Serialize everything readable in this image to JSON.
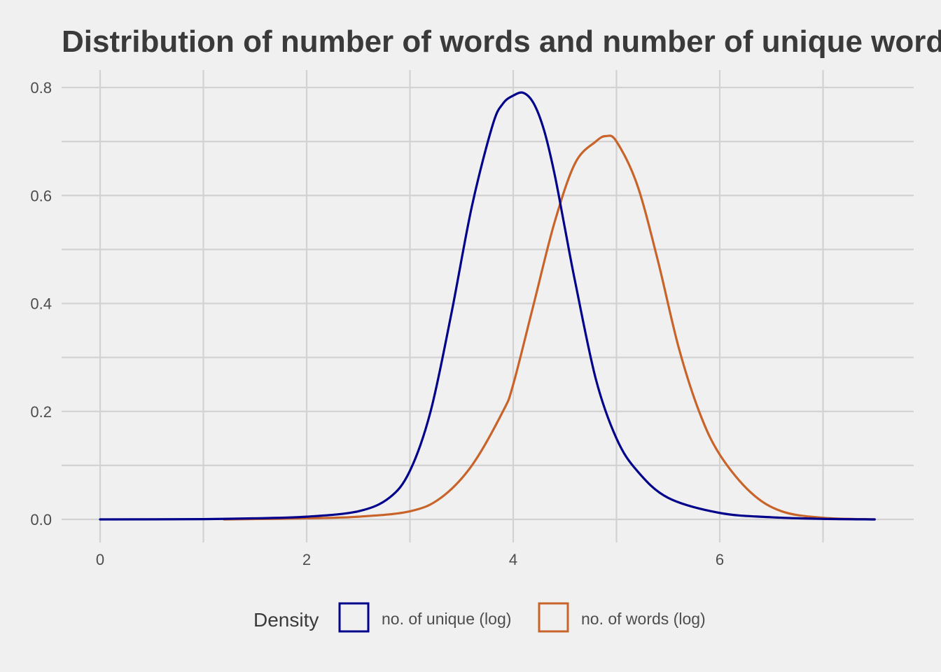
{
  "chart_data": {
    "type": "line",
    "title": "Distribution of number of words and number of unique words",
    "xlabel": "",
    "ylabel": "",
    "xlim": [
      0,
      7.5
    ],
    "ylim": [
      0,
      0.8
    ],
    "x_ticks": [
      0,
      2,
      4,
      6
    ],
    "y_ticks": [
      0.0,
      0.2,
      0.4,
      0.6,
      0.8
    ],
    "x_tick_labels": [
      "0",
      "2",
      "4",
      "6"
    ],
    "y_tick_labels": [
      "0.0",
      "0.2",
      "0.4",
      "0.6",
      "0.8"
    ],
    "grid": true,
    "legend": {
      "title": "Density",
      "position": "bottom"
    },
    "series": [
      {
        "name": "no. of unique (log)",
        "color": "#00008b",
        "x": [
          0,
          1.0,
          1.5,
          2.0,
          2.5,
          2.8,
          3.0,
          3.2,
          3.4,
          3.6,
          3.8,
          3.9,
          4.0,
          4.1,
          4.2,
          4.3,
          4.4,
          4.5,
          4.6,
          4.8,
          5.0,
          5.2,
          5.5,
          6.0,
          6.5,
          7.0,
          7.5
        ],
        "y": [
          0.0,
          0.0005,
          0.002,
          0.005,
          0.015,
          0.04,
          0.09,
          0.2,
          0.38,
          0.58,
          0.73,
          0.77,
          0.785,
          0.79,
          0.77,
          0.72,
          0.64,
          0.54,
          0.44,
          0.26,
          0.15,
          0.09,
          0.04,
          0.012,
          0.004,
          0.001,
          0.0
        ]
      },
      {
        "name": "no. of words (log)",
        "color": "#c8642a",
        "x": [
          1.2,
          2.0,
          2.5,
          3.0,
          3.3,
          3.6,
          3.9,
          4.0,
          4.2,
          4.4,
          4.6,
          4.8,
          4.9,
          5.0,
          5.2,
          5.4,
          5.6,
          5.8,
          6.0,
          6.3,
          6.6,
          7.0,
          7.5
        ],
        "y": [
          0.0,
          0.002,
          0.005,
          0.015,
          0.04,
          0.1,
          0.2,
          0.25,
          0.4,
          0.55,
          0.66,
          0.7,
          0.71,
          0.7,
          0.62,
          0.48,
          0.32,
          0.2,
          0.12,
          0.05,
          0.015,
          0.003,
          0.0
        ]
      }
    ]
  }
}
